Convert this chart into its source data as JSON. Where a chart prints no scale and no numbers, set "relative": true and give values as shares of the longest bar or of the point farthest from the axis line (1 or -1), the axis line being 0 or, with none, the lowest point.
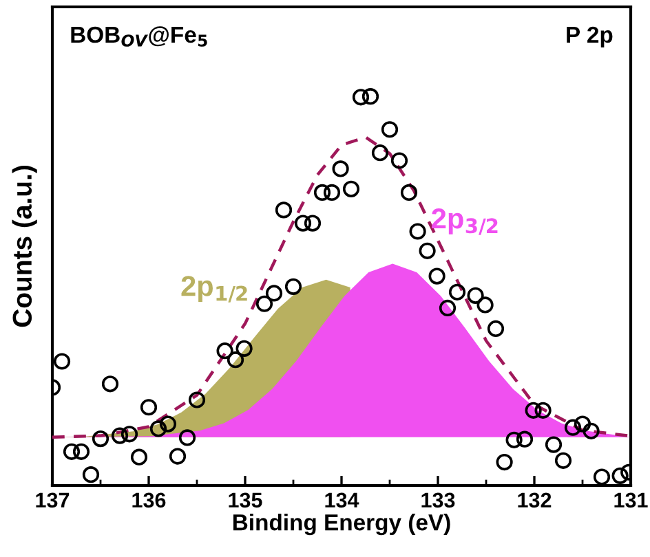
{
  "chart_data": {
    "type": "scatter",
    "relative": true,
    "xlabel": "Binding Energy (eV)",
    "ylabel": "Counts (a.u.)",
    "annotations": [
      "BOB$_{OV}$@Fe$_{5}$",
      "P 2p"
    ],
    "xlim": [
      137,
      131
    ],
    "xticks": [
      137,
      136,
      135,
      134,
      133,
      132,
      131
    ],
    "tick_labels": "x",
    "grid": false,
    "legend": false,
    "series": [
      {
        "name": "2p$_{1/2}$",
        "type": "area",
        "color": "#b8b060",
        "x": [
          137,
          136.66,
          136.16,
          135.91,
          135.66,
          135.41,
          135.16,
          134.91,
          134.66,
          134.41,
          134.16,
          133.91,
          133.66,
          133.41,
          133.16,
          132.91,
          132.66,
          132.41,
          132.16,
          131.66,
          131
        ],
        "values": [
          0.124,
          0.126,
          0.139,
          0.157,
          0.188,
          0.236,
          0.302,
          0.379,
          0.454,
          0.509,
          0.529,
          0.509,
          null,
          null,
          null,
          null,
          null,
          null,
          null,
          0.126,
          0.124
        ]
      },
      {
        "name": "2p$_{3/2}$",
        "type": "area",
        "color": "#f050f0",
        "x": [
          137,
          135.97,
          135.47,
          135.22,
          134.97,
          134.72,
          134.47,
          134.22,
          133.97,
          133.72,
          133.47,
          133.22,
          132.97,
          132.72,
          132.47,
          132.22,
          131.97,
          131.72,
          131.47,
          131
        ],
        "values": [
          0.124,
          0.127,
          0.141,
          0.16,
          0.194,
          0.248,
          0.32,
          0.405,
          0.487,
          0.548,
          0.57,
          0.548,
          0.487,
          0.405,
          0.32,
          0.248,
          0.194,
          0.16,
          0.141,
          0.124
        ]
      },
      {
        "type": "line",
        "color": "#a0185a",
        "line_style": "dashed",
        "x": [
          137,
          136.5,
          136.0,
          135.5,
          135.0,
          134.5,
          134.25,
          134.0,
          133.75,
          133.5,
          133.25,
          133.0,
          132.5,
          132.0,
          131.5,
          131.0
        ],
        "values": [
          0.124,
          0.128,
          0.151,
          0.232,
          0.416,
          0.678,
          0.798,
          0.875,
          0.895,
          0.853,
          0.758,
          0.63,
          0.372,
          0.208,
          0.142,
          0.127
        ]
      },
      {
        "color": "#000000",
        "marker": "circle",
        "x": [
          137.0,
          136.9,
          136.8,
          136.7,
          136.6,
          136.5,
          136.4,
          136.3,
          136.2,
          136.1,
          136.0,
          135.9,
          135.8,
          135.7,
          135.6,
          135.5,
          135.21,
          135.1,
          135.01,
          134.8,
          134.7,
          134.6,
          134.5,
          134.4,
          134.3,
          134.2,
          134.1,
          134.01,
          133.9,
          133.8,
          133.7,
          133.6,
          133.5,
          133.4,
          133.3,
          133.21,
          133.11,
          133.01,
          132.9,
          132.8,
          132.61,
          132.51,
          132.4,
          132.31,
          132.21,
          132.1,
          132.01,
          131.91,
          131.8,
          131.7,
          131.6,
          131.5,
          131.41,
          131.3,
          131.11,
          131.02
        ],
        "values": [
          0.252,
          0.319,
          0.087,
          0.087,
          0.028,
          0.12,
          0.261,
          0.128,
          0.132,
          0.073,
          0.201,
          0.146,
          0.158,
          0.075,
          0.123,
          0.22,
          0.346,
          0.323,
          0.352,
          0.467,
          0.494,
          0.708,
          0.511,
          0.674,
          0.674,
          0.753,
          0.753,
          0.814,
          0.762,
          0.998,
          1.0,
          0.855,
          0.915,
          0.835,
          0.753,
          0.653,
          0.603,
          0.538,
          0.456,
          0.497,
          0.488,
          0.464,
          0.403,
          0.06,
          0.117,
          0.119,
          0.193,
          0.193,
          0.105,
          0.064,
          0.149,
          0.158,
          0.14,
          0.022,
          0.025,
          0.034
        ]
      }
    ]
  }
}
